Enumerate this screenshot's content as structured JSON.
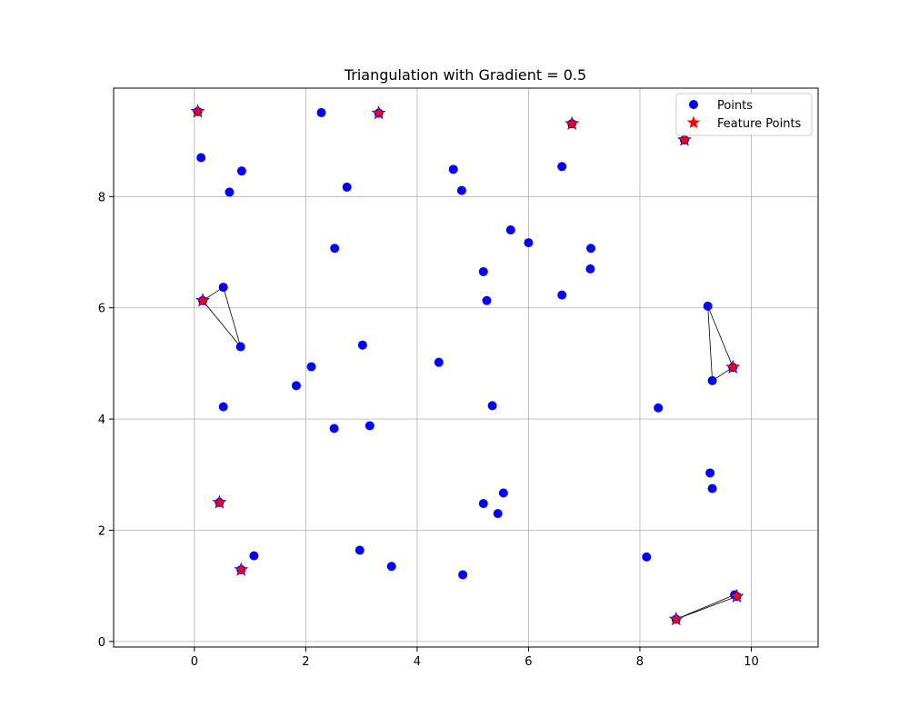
{
  "chart_data": {
    "type": "scatter",
    "title": "Triangulation with Gradient = 0.5",
    "xlabel": "",
    "ylabel": "",
    "xlim": [
      -1.45,
      11.2
    ],
    "ylim": [
      -0.1,
      9.95
    ],
    "xticks": [
      0,
      2,
      4,
      6,
      8,
      10
    ],
    "yticks": [
      0,
      2,
      4,
      6,
      8
    ],
    "grid": true,
    "legend": {
      "placement": "top-right",
      "entries": [
        {
          "label": "Points",
          "marker": "circle",
          "color": "#0000ff"
        },
        {
          "label": "Feature Points",
          "marker": "star",
          "color": "#ff0000"
        }
      ]
    },
    "series": [
      {
        "name": "Points",
        "color": "#0000ff",
        "marker": "circle",
        "points": [
          [
            0.06,
            9.53
          ],
          [
            0.12,
            8.7
          ],
          [
            0.85,
            8.46
          ],
          [
            0.63,
            8.08
          ],
          [
            2.28,
            9.51
          ],
          [
            3.31,
            9.5
          ],
          [
            2.74,
            8.17
          ],
          [
            2.52,
            7.07
          ],
          [
            0.52,
            6.37
          ],
          [
            0.15,
            6.13
          ],
          [
            0.83,
            5.3
          ],
          [
            0.52,
            4.22
          ],
          [
            0.45,
            2.5
          ],
          [
            0.84,
            1.29
          ],
          [
            1.07,
            1.54
          ],
          [
            1.83,
            4.6
          ],
          [
            2.1,
            4.94
          ],
          [
            3.02,
            5.33
          ],
          [
            2.51,
            3.83
          ],
          [
            3.15,
            3.88
          ],
          [
            2.97,
            1.64
          ],
          [
            3.54,
            1.35
          ],
          [
            4.65,
            8.49
          ],
          [
            4.8,
            8.11
          ],
          [
            5.68,
            7.4
          ],
          [
            6.0,
            7.17
          ],
          [
            5.19,
            6.65
          ],
          [
            5.25,
            6.13
          ],
          [
            4.39,
            5.02
          ],
          [
            5.35,
            4.24
          ],
          [
            5.55,
            2.67
          ],
          [
            5.19,
            2.48
          ],
          [
            5.45,
            2.3
          ],
          [
            4.82,
            1.2
          ],
          [
            6.6,
            8.54
          ],
          [
            6.78,
            9.31
          ],
          [
            7.12,
            7.07
          ],
          [
            7.11,
            6.7
          ],
          [
            6.6,
            6.23
          ],
          [
            8.8,
            9.02
          ],
          [
            9.22,
            6.03
          ],
          [
            9.67,
            4.93
          ],
          [
            9.3,
            4.69
          ],
          [
            8.33,
            4.2
          ],
          [
            9.26,
            3.03
          ],
          [
            9.3,
            2.75
          ],
          [
            8.12,
            1.52
          ],
          [
            9.7,
            0.84
          ],
          [
            9.74,
            0.81
          ],
          [
            8.65,
            0.4
          ]
        ]
      },
      {
        "name": "Feature Points",
        "color": "#ff0000",
        "marker": "star",
        "points": [
          [
            0.06,
            9.53
          ],
          [
            3.31,
            9.5
          ],
          [
            6.78,
            9.31
          ],
          [
            8.8,
            9.02
          ],
          [
            0.15,
            6.13
          ],
          [
            9.67,
            4.93
          ],
          [
            0.45,
            2.5
          ],
          [
            0.84,
            1.29
          ],
          [
            9.74,
            0.81
          ],
          [
            8.65,
            0.4
          ]
        ]
      }
    ],
    "triangles": [
      [
        [
          0.15,
          6.13
        ],
        [
          0.52,
          6.37
        ],
        [
          0.83,
          5.3
        ]
      ],
      [
        [
          9.22,
          6.03
        ],
        [
          9.67,
          4.93
        ],
        [
          9.3,
          4.69
        ]
      ],
      [
        [
          8.65,
          0.4
        ],
        [
          9.7,
          0.84
        ],
        [
          9.74,
          0.81
        ]
      ]
    ]
  }
}
